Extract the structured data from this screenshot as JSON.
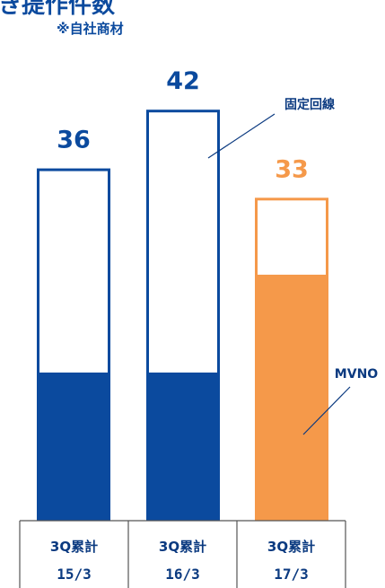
{
  "header": {
    "title_fragment": "き提作件数",
    "note": "※自社商材"
  },
  "colors": {
    "blue": "#0b4a9e",
    "orange": "#f5994a",
    "text_dark": "#0b3a80",
    "table_border": "#555555"
  },
  "chart_data": {
    "type": "bar",
    "stacked": true,
    "categories": [
      "3Q累計 15/3",
      "3Q累計 16/3",
      "3Q累計 17/3"
    ],
    "category_lines": [
      [
        "3Q累計",
        "15/3"
      ],
      [
        "3Q累計",
        "16/3"
      ],
      [
        "3Q累計",
        "17/3"
      ]
    ],
    "series": [
      {
        "name": "MVNO",
        "values": [
          15,
          15,
          25
        ]
      },
      {
        "name": "固定回線",
        "values": [
          21,
          27,
          8
        ]
      }
    ],
    "totals": [
      36,
      42,
      33
    ],
    "total_labels": [
      "36",
      "42",
      "33"
    ],
    "ylim": [
      0,
      48
    ],
    "grid": false,
    "legend": "callout-labels"
  }
}
